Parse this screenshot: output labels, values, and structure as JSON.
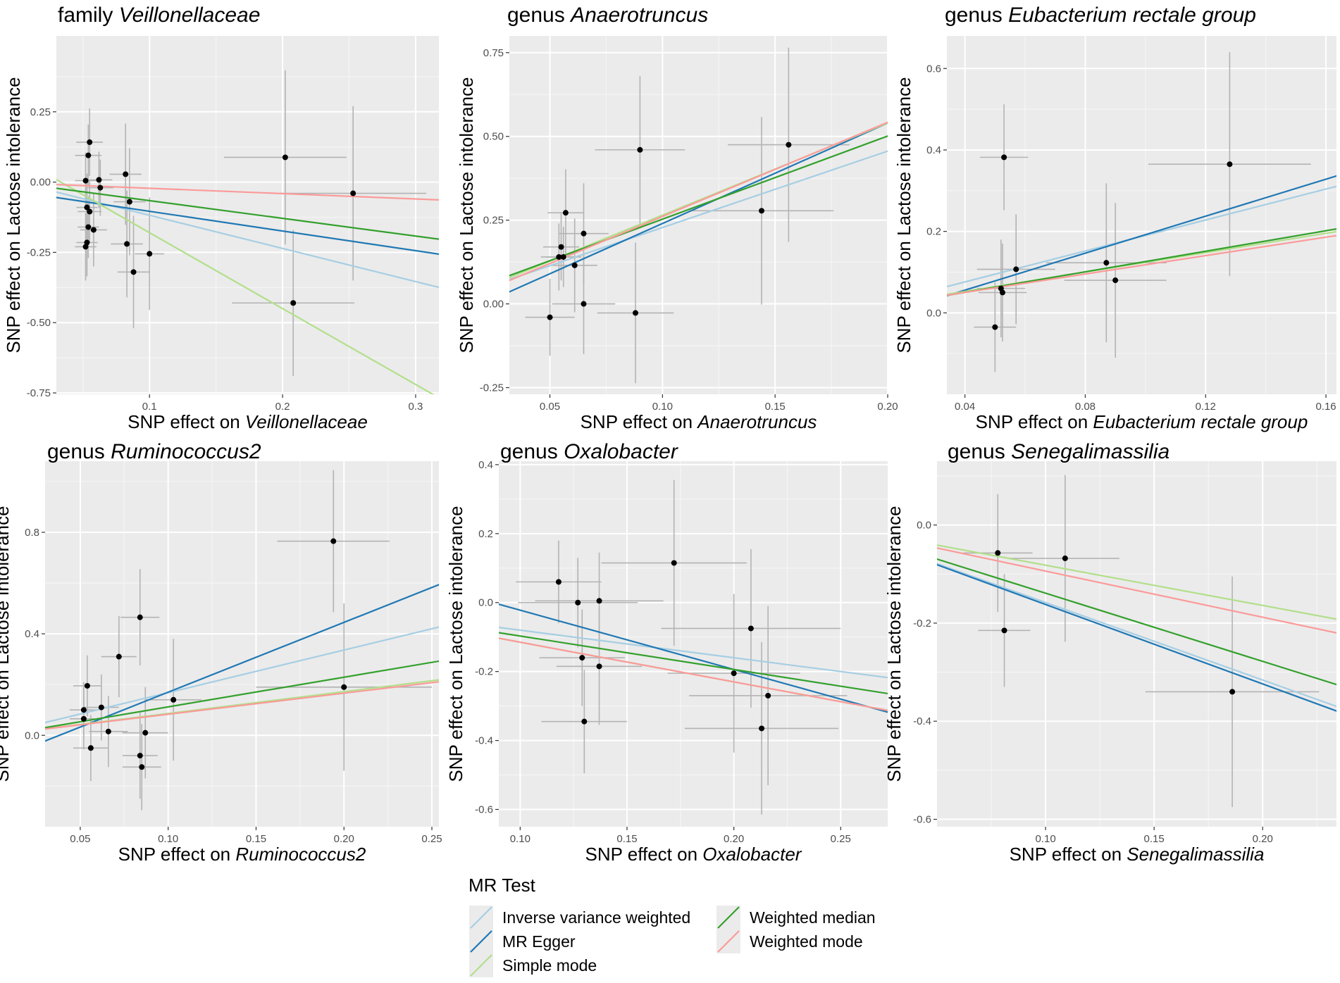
{
  "colors": {
    "panel_bg": "#ebebeb",
    "grid_major": "#ffffff",
    "grid_minor": "#f5f5f5",
    "point": "#000000",
    "errorbar": "#b3b3b3",
    "tick_text": "#4d4d4d",
    "methods": {
      "ivw": "#a6cee3",
      "egger": "#1f78b4",
      "simple": "#b2df8a",
      "wmedian": "#33a02c",
      "wmode": "#fb9a99"
    }
  },
  "ylabel": "SNP effect on Lactose intolerance",
  "xlabel_prefix": "SNP effect on ",
  "legend": {
    "title": "MR Test",
    "items": [
      {
        "key": "ivw",
        "label": "Inverse variance weighted"
      },
      {
        "key": "egger",
        "label": "MR Egger"
      },
      {
        "key": "simple",
        "label": "Simple mode"
      },
      {
        "key": "wmedian",
        "label": "Weighted median"
      },
      {
        "key": "wmode",
        "label": "Weighted mode"
      }
    ]
  },
  "chart_data": [
    {
      "type": "scatter",
      "title_prefix": "family ",
      "taxon": "Veillonellaceae",
      "xlim": [
        0.03,
        0.3175
      ],
      "ylim": [
        -0.755,
        0.52
      ],
      "xticks": [
        0.1,
        0.2,
        0.3
      ],
      "xtick_labels": [
        "0.1",
        "0.2",
        "0.3"
      ],
      "yticks": [
        0.25,
        0.0,
        -0.25,
        -0.5,
        -0.75
      ],
      "ytick_labels": [
        "0.25",
        "0.00",
        "-0.25",
        "-0.50",
        "-0.75"
      ],
      "points": [
        {
          "x": 0.052,
          "y": 0.005,
          "xerr": 0.008,
          "yerr": 0.1
        },
        {
          "x": 0.054,
          "y": 0.095,
          "xerr": 0.01,
          "yerr": 0.11
        },
        {
          "x": 0.055,
          "y": 0.142,
          "xerr": 0.01,
          "yerr": 0.12
        },
        {
          "x": 0.053,
          "y": -0.09,
          "xerr": 0.008,
          "yerr": 0.12
        },
        {
          "x": 0.055,
          "y": -0.105,
          "xerr": 0.009,
          "yerr": 0.11
        },
        {
          "x": 0.054,
          "y": -0.16,
          "xerr": 0.008,
          "yerr": 0.11
        },
        {
          "x": 0.058,
          "y": -0.17,
          "xerr": 0.01,
          "yerr": 0.13
        },
        {
          "x": 0.053,
          "y": -0.215,
          "xerr": 0.008,
          "yerr": 0.12
        },
        {
          "x": 0.052,
          "y": -0.23,
          "xerr": 0.008,
          "yerr": 0.12
        },
        {
          "x": 0.062,
          "y": 0.008,
          "xerr": 0.01,
          "yerr": 0.1
        },
        {
          "x": 0.063,
          "y": -0.02,
          "xerr": 0.01,
          "yerr": 0.1
        },
        {
          "x": 0.082,
          "y": 0.028,
          "xerr": 0.012,
          "yerr": 0.18
        },
        {
          "x": 0.085,
          "y": -0.07,
          "xerr": 0.012,
          "yerr": 0.19
        },
        {
          "x": 0.083,
          "y": -0.22,
          "xerr": 0.012,
          "yerr": 0.19
        },
        {
          "x": 0.088,
          "y": -0.32,
          "xerr": 0.012,
          "yerr": 0.2
        },
        {
          "x": 0.1,
          "y": -0.255,
          "xerr": 0.011,
          "yerr": 0.2
        },
        {
          "x": 0.202,
          "y": 0.088,
          "xerr": 0.046,
          "yerr": 0.31
        },
        {
          "x": 0.208,
          "y": -0.43,
          "xerr": 0.046,
          "yerr": 0.26
        },
        {
          "x": 0.253,
          "y": -0.04,
          "xerr": 0.055,
          "yerr": 0.31
        }
      ],
      "lines": [
        {
          "key": "ivw",
          "intercept": 0.0,
          "slope": -1.18
        },
        {
          "key": "egger",
          "intercept": -0.034,
          "slope": -0.7
        },
        {
          "key": "simple",
          "intercept": 0.09,
          "slope": -2.7
        },
        {
          "key": "wmedian",
          "intercept": -0.003,
          "slope": -0.63
        },
        {
          "key": "wmode",
          "intercept": -0.003,
          "slope": -0.19
        }
      ]
    },
    {
      "type": "scatter",
      "title_prefix": "genus ",
      "taxon": "Anaerotruncus",
      "xlim": [
        0.032,
        0.2
      ],
      "ylim": [
        -0.27,
        0.8
      ],
      "xticks": [
        0.05,
        0.1,
        0.15,
        0.2
      ],
      "xtick_labels": [
        "0.05",
        "0.10",
        "0.15",
        "0.20"
      ],
      "yticks": [
        0.75,
        0.5,
        0.25,
        0.0,
        -0.25
      ],
      "ytick_labels": [
        "0.75",
        "0.50",
        "0.25",
        "0.00",
        "-0.25"
      ],
      "points": [
        {
          "x": 0.05,
          "y": -0.04,
          "xerr": 0.011,
          "yerr": 0.115
        },
        {
          "x": 0.054,
          "y": 0.14,
          "xerr": 0.008,
          "yerr": 0.1
        },
        {
          "x": 0.055,
          "y": 0.17,
          "xerr": 0.008,
          "yerr": 0.1
        },
        {
          "x": 0.056,
          "y": 0.14,
          "xerr": 0.008,
          "yerr": 0.09
        },
        {
          "x": 0.057,
          "y": 0.272,
          "xerr": 0.008,
          "yerr": 0.13
        },
        {
          "x": 0.061,
          "y": 0.115,
          "xerr": 0.01,
          "yerr": 0.14
        },
        {
          "x": 0.065,
          "y": 0.21,
          "xerr": 0.011,
          "yerr": 0.15
        },
        {
          "x": 0.065,
          "y": 0.0,
          "xerr": 0.014,
          "yerr": 0.15
        },
        {
          "x": 0.088,
          "y": -0.027,
          "xerr": 0.017,
          "yerr": 0.21
        },
        {
          "x": 0.09,
          "y": 0.46,
          "xerr": 0.02,
          "yerr": 0.22
        },
        {
          "x": 0.144,
          "y": 0.278,
          "xerr": 0.032,
          "yerr": 0.28
        },
        {
          "x": 0.156,
          "y": 0.475,
          "xerr": 0.027,
          "yerr": 0.29
        }
      ],
      "lines": [
        {
          "key": "ivw",
          "intercept": 0.0,
          "slope": 2.28
        },
        {
          "key": "egger",
          "intercept": -0.06,
          "slope": 3.0
        },
        {
          "key": "simple",
          "intercept": -0.01,
          "slope": 2.75
        },
        {
          "key": "wmedian",
          "intercept": 0.005,
          "slope": 2.48
        },
        {
          "key": "wmode",
          "intercept": -0.02,
          "slope": 2.81
        }
      ]
    },
    {
      "type": "scatter",
      "title_prefix": "genus ",
      "taxon": "Eubacterium rectale group",
      "xlim": [
        0.034,
        0.1635
      ],
      "ylim": [
        -0.2,
        0.68
      ],
      "xticks": [
        0.04,
        0.08,
        0.12,
        0.16
      ],
      "xtick_labels": [
        "0.04",
        "0.08",
        "0.12",
        "0.16"
      ],
      "yticks": [
        0.6,
        0.4,
        0.2,
        0.0
      ],
      "ytick_labels": [
        "0.6",
        "0.4",
        "0.2",
        "0.0"
      ],
      "points": [
        {
          "x": 0.05,
          "y": -0.035,
          "xerr": 0.007,
          "yerr": 0.11
        },
        {
          "x": 0.052,
          "y": 0.06,
          "xerr": 0.008,
          "yerr": 0.12
        },
        {
          "x": 0.0525,
          "y": 0.05,
          "xerr": 0.008,
          "yerr": 0.12
        },
        {
          "x": 0.053,
          "y": 0.382,
          "xerr": 0.008,
          "yerr": 0.13
        },
        {
          "x": 0.057,
          "y": 0.107,
          "xerr": 0.013,
          "yerr": 0.135
        },
        {
          "x": 0.087,
          "y": 0.123,
          "xerr": 0.02,
          "yerr": 0.195
        },
        {
          "x": 0.09,
          "y": 0.08,
          "xerr": 0.017,
          "yerr": 0.19
        },
        {
          "x": 0.128,
          "y": 0.365,
          "xerr": 0.027,
          "yerr": 0.275
        }
      ],
      "lines": [
        {
          "key": "ivw",
          "intercept": 0.0,
          "slope": 1.9
        },
        {
          "key": "egger",
          "intercept": -0.035,
          "slope": 2.27
        },
        {
          "key": "simple",
          "intercept": 0.005,
          "slope": 1.19
        },
        {
          "key": "wmedian",
          "intercept": 0.0,
          "slope": 1.26
        },
        {
          "key": "wmode",
          "intercept": 0.005,
          "slope": 1.13
        }
      ]
    },
    {
      "type": "scatter",
      "title_prefix": "genus ",
      "taxon": "Ruminococcus2",
      "xlim": [
        0.03,
        0.254
      ],
      "ylim": [
        -0.36,
        1.08
      ],
      "xticks": [
        0.05,
        0.1,
        0.15,
        0.2,
        0.25
      ],
      "xtick_labels": [
        "0.05",
        "0.10",
        "0.15",
        "0.20",
        "0.25"
      ],
      "yticks": [
        0.8,
        0.4,
        0.0
      ],
      "ytick_labels": [
        "0.8",
        "0.4",
        "0.0"
      ],
      "points": [
        {
          "x": 0.052,
          "y": 0.1,
          "xerr": 0.008,
          "yerr": 0.11
        },
        {
          "x": 0.052,
          "y": 0.065,
          "xerr": 0.008,
          "yerr": 0.12
        },
        {
          "x": 0.054,
          "y": 0.195,
          "xerr": 0.008,
          "yerr": 0.12
        },
        {
          "x": 0.056,
          "y": -0.05,
          "xerr": 0.01,
          "yerr": 0.13
        },
        {
          "x": 0.062,
          "y": 0.11,
          "xerr": 0.01,
          "yerr": 0.13
        },
        {
          "x": 0.066,
          "y": 0.015,
          "xerr": 0.011,
          "yerr": 0.14
        },
        {
          "x": 0.072,
          "y": 0.31,
          "xerr": 0.01,
          "yerr": 0.16
        },
        {
          "x": 0.084,
          "y": 0.465,
          "xerr": 0.011,
          "yerr": 0.19
        },
        {
          "x": 0.084,
          "y": -0.08,
          "xerr": 0.01,
          "yerr": 0.17
        },
        {
          "x": 0.085,
          "y": -0.125,
          "xerr": 0.011,
          "yerr": 0.17
        },
        {
          "x": 0.087,
          "y": 0.01,
          "xerr": 0.013,
          "yerr": 0.18
        },
        {
          "x": 0.103,
          "y": 0.14,
          "xerr": 0.016,
          "yerr": 0.24
        },
        {
          "x": 0.194,
          "y": 0.765,
          "xerr": 0.032,
          "yerr": 0.28
        },
        {
          "x": 0.2,
          "y": 0.19,
          "xerr": 0.05,
          "yerr": 0.33
        }
      ],
      "lines": [
        {
          "key": "ivw",
          "intercept": 0.0,
          "slope": 1.68
        },
        {
          "key": "egger",
          "intercept": -0.105,
          "slope": 2.75
        },
        {
          "key": "simple",
          "intercept": 0.0,
          "slope": 0.86
        },
        {
          "key": "wmedian",
          "intercept": -0.005,
          "slope": 1.17
        },
        {
          "key": "wmode",
          "intercept": 0.0,
          "slope": 0.83
        }
      ]
    },
    {
      "type": "scatter",
      "title_prefix": "genus ",
      "taxon": "Oxalobacter",
      "xlim": [
        0.09,
        0.272
      ],
      "ylim": [
        -0.65,
        0.41
      ],
      "xticks": [
        0.1,
        0.15,
        0.2,
        0.25
      ],
      "xtick_labels": [
        "0.10",
        "0.15",
        "0.20",
        "0.25"
      ],
      "yticks": [
        0.4,
        0.2,
        0.0,
        -0.2,
        -0.4,
        -0.6
      ],
      "ytick_labels": [
        "0.4",
        "0.2",
        "0.0",
        "-0.2",
        "-0.4",
        "-0.6"
      ],
      "points": [
        {
          "x": 0.118,
          "y": 0.06,
          "xerr": 0.02,
          "yerr": 0.12
        },
        {
          "x": 0.127,
          "y": 0.0,
          "xerr": 0.028,
          "yerr": 0.13
        },
        {
          "x": 0.137,
          "y": 0.005,
          "xerr": 0.03,
          "yerr": 0.14
        },
        {
          "x": 0.129,
          "y": -0.16,
          "xerr": 0.02,
          "yerr": 0.14
        },
        {
          "x": 0.137,
          "y": -0.185,
          "xerr": 0.02,
          "yerr": 0.17
        },
        {
          "x": 0.13,
          "y": -0.345,
          "xerr": 0.02,
          "yerr": 0.15
        },
        {
          "x": 0.172,
          "y": 0.115,
          "xerr": 0.034,
          "yerr": 0.24
        },
        {
          "x": 0.2,
          "y": -0.205,
          "xerr": 0.031,
          "yerr": 0.23
        },
        {
          "x": 0.208,
          "y": -0.075,
          "xerr": 0.042,
          "yerr": 0.23
        },
        {
          "x": 0.216,
          "y": -0.27,
          "xerr": 0.037,
          "yerr": 0.26
        },
        {
          "x": 0.213,
          "y": -0.365,
          "xerr": 0.036,
          "yerr": 0.25
        }
      ],
      "lines": [
        {
          "key": "ivw",
          "intercept": 0.0,
          "slope": -0.8
        },
        {
          "key": "egger",
          "intercept": 0.15,
          "slope": -1.72
        },
        {
          "key": "simple",
          "intercept": 0.0,
          "slope": -1.15
        },
        {
          "key": "wmedian",
          "intercept": 0.0,
          "slope": -0.97
        },
        {
          "key": "wmode",
          "intercept": 0.0,
          "slope": -1.15
        }
      ]
    },
    {
      "type": "scatter",
      "title_prefix": "genus ",
      "taxon": "Senegalimassilia",
      "xlim": [
        0.05,
        0.234
      ],
      "ylim": [
        -0.615,
        0.13
      ],
      "xticks": [
        0.1,
        0.15,
        0.2
      ],
      "xtick_labels": [
        "0.10",
        "0.15",
        "0.20"
      ],
      "yticks": [
        0.0,
        -0.2,
        -0.4,
        -0.6
      ],
      "ytick_labels": [
        "0.0",
        "-0.2",
        "-0.4",
        "-0.6"
      ],
      "points": [
        {
          "x": 0.078,
          "y": -0.057,
          "xerr": 0.016,
          "yerr": 0.12
        },
        {
          "x": 0.081,
          "y": -0.215,
          "xerr": 0.012,
          "yerr": 0.115
        },
        {
          "x": 0.109,
          "y": -0.068,
          "xerr": 0.025,
          "yerr": 0.17
        },
        {
          "x": 0.186,
          "y": -0.34,
          "xerr": 0.04,
          "yerr": 0.235
        }
      ],
      "lines": [
        {
          "key": "ivw",
          "intercept": 0.0,
          "slope": -1.58
        },
        {
          "key": "egger",
          "intercept": 0.0,
          "slope": -1.62
        },
        {
          "key": "simple",
          "intercept": 0.0,
          "slope": -0.82
        },
        {
          "key": "wmedian",
          "intercept": 0.0,
          "slope": -1.39
        },
        {
          "key": "wmode",
          "intercept": 0.0,
          "slope": -0.94
        }
      ]
    }
  ]
}
